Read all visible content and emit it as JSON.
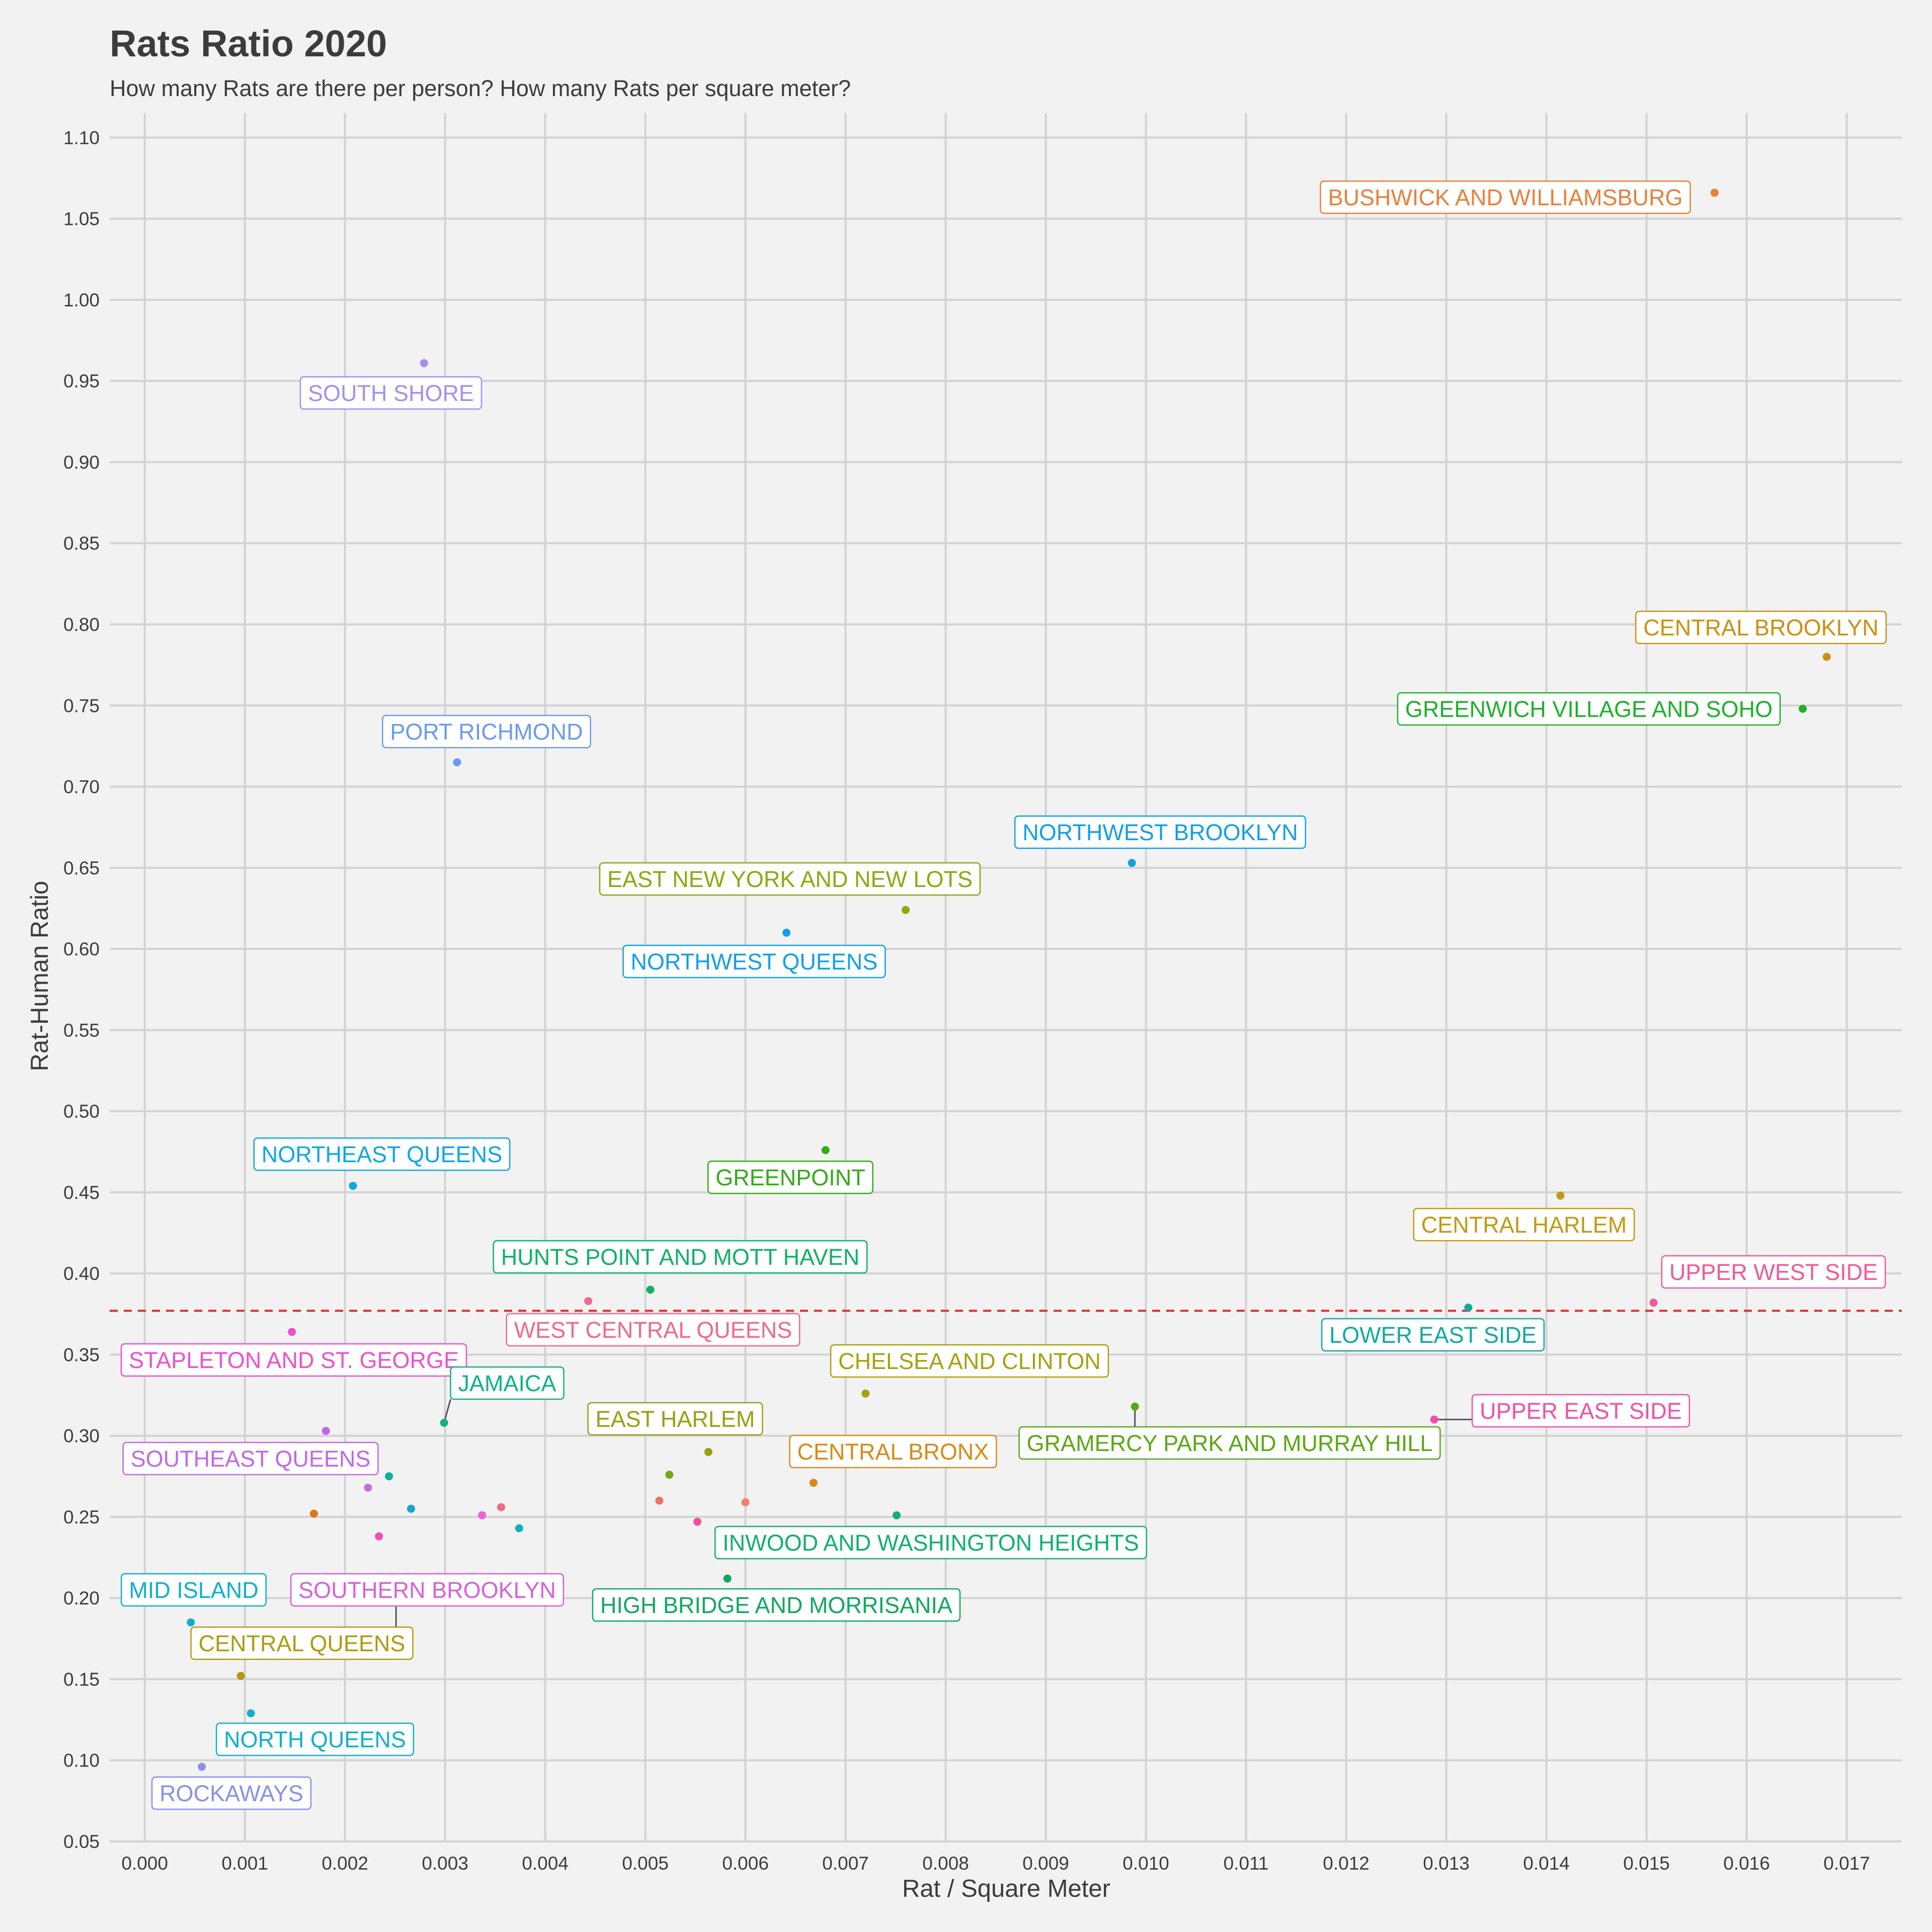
{
  "chart_data": {
    "type": "scatter",
    "title": "Rats Ratio 2020",
    "subtitle": "How many Rats are there per person? How many Rats per square meter?",
    "xlabel": "Rat / Square Meter",
    "ylabel": "Rat-Human Ratio",
    "xlim": [
      -0.00035,
      0.01755
    ],
    "ylim": [
      0.05,
      1.115
    ],
    "x_ticks": [
      0.0,
      0.001,
      0.002,
      0.003,
      0.004,
      0.005,
      0.006,
      0.007,
      0.008,
      0.009,
      0.01,
      0.011,
      0.012,
      0.013,
      0.014,
      0.015,
      0.016,
      0.017
    ],
    "x_tick_labels": [
      "0.000",
      "0.001",
      "0.002",
      "0.003",
      "0.004",
      "0.005",
      "0.006",
      "0.007",
      "0.008",
      "0.009",
      "0.010",
      "0.011",
      "0.012",
      "0.013",
      "0.014",
      "0.015",
      "0.016",
      "0.017"
    ],
    "y_ticks": [
      0.05,
      0.1,
      0.15,
      0.2,
      0.25,
      0.3,
      0.35,
      0.4,
      0.45,
      0.5,
      0.55,
      0.6,
      0.65,
      0.7,
      0.75,
      0.8,
      0.85,
      0.9,
      0.95,
      1.0,
      1.05,
      1.1
    ],
    "y_tick_labels": [
      "0.05",
      "0.10",
      "0.15",
      "0.20",
      "0.25",
      "0.30",
      "0.35",
      "0.40",
      "0.45",
      "0.50",
      "0.55",
      "0.60",
      "0.65",
      "0.70",
      "0.75",
      "0.80",
      "0.85",
      "0.90",
      "0.95",
      "1.00",
      "1.05",
      "1.10"
    ],
    "grid": true,
    "legend": "none",
    "reference_line": {
      "y": 0.377,
      "style": "dashed",
      "color": "#e8262b"
    },
    "points": [
      {
        "x": 0.01568,
        "y": 1.066,
        "color": "#e8803a",
        "label": "BUSHWICK AND WILLIAMSBURG"
      },
      {
        "x": 0.00279,
        "y": 0.961,
        "color": "#a390f0",
        "label": "SOUTH SHORE"
      },
      {
        "x": 0.0168,
        "y": 0.78,
        "color": "#cc9010",
        "label": "CENTRAL BROOKLYN"
      },
      {
        "x": 0.01656,
        "y": 0.748,
        "color": "#1db02c",
        "label": "GREENWICH VILLAGE AND SOHO"
      },
      {
        "x": 0.00312,
        "y": 0.715,
        "color": "#6b9af0",
        "label": "PORT RICHMOND"
      },
      {
        "x": 0.00986,
        "y": 0.653,
        "color": "#139fe8",
        "label": "NORTHWEST BROOKLYN"
      },
      {
        "x": 0.0076,
        "y": 0.624,
        "color": "#8aaa10",
        "label": "EAST NEW YORK AND NEW LOTS"
      },
      {
        "x": 0.00641,
        "y": 0.61,
        "color": "#139fe8",
        "label": "NORTHWEST QUEENS"
      },
      {
        "x": 0.0068,
        "y": 0.476,
        "color": "#33ab18",
        "label": "GREENPOINT"
      },
      {
        "x": 0.00208,
        "y": 0.454,
        "color": "#10a6e6",
        "label": "NORTHEAST QUEENS"
      },
      {
        "x": 0.01414,
        "y": 0.448,
        "color": "#c09a12",
        "label": "CENTRAL HARLEM"
      },
      {
        "x": 0.00505,
        "y": 0.39,
        "color": "#10b068",
        "label": "HUNTS POINT AND MOTT HAVEN"
      },
      {
        "x": 0.00443,
        "y": 0.383,
        "color": "#f06a8a",
        "label": "WEST CENTRAL QUEENS"
      },
      {
        "x": 0.01507,
        "y": 0.382,
        "color": "#f05a98",
        "label": "UPPER WEST SIDE"
      },
      {
        "x": 0.01322,
        "y": 0.379,
        "color": "#10aaa0",
        "label": "LOWER EAST SIDE"
      },
      {
        "x": 0.00147,
        "y": 0.364,
        "color": "#f050c8",
        "label": "STAPLETON AND ST. GEORGE"
      },
      {
        "x": 0.0072,
        "y": 0.326,
        "color": "#a8a010",
        "label": "CHELSEA AND CLINTON"
      },
      {
        "x": 0.00989,
        "y": 0.318,
        "color": "#5aa812",
        "label": "GRAMERCY PARK AND MURRAY HILL"
      },
      {
        "x": 0.01288,
        "y": 0.31,
        "color": "#f050a8",
        "label": "UPPER EAST SIDE"
      },
      {
        "x": 0.00299,
        "y": 0.308,
        "color": "#10b08a",
        "label": "JAMAICA"
      },
      {
        "x": 0.00181,
        "y": 0.303,
        "color": "#c068e8",
        "label": "SOUTHEAST QUEENS"
      },
      {
        "x": 0.00563,
        "y": 0.29,
        "color": "#98a010",
        "label": "EAST HARLEM"
      },
      {
        "x": 0.00668,
        "y": 0.271,
        "color": "#d88a18",
        "label": "CENTRAL BRONX"
      },
      {
        "x": 0.00524,
        "y": 0.276,
        "color": "#70a818",
        "label": ""
      },
      {
        "x": 0.00244,
        "y": 0.275,
        "color": "#10b0a0",
        "label": ""
      },
      {
        "x": 0.00223,
        "y": 0.268,
        "color": "#c070e0",
        "label": ""
      },
      {
        "x": 0.00514,
        "y": 0.26,
        "color": "#f07060",
        "label": ""
      },
      {
        "x": 0.006,
        "y": 0.259,
        "color": "#f08070",
        "label": ""
      },
      {
        "x": 0.00356,
        "y": 0.256,
        "color": "#f06a80",
        "label": ""
      },
      {
        "x": 0.00266,
        "y": 0.255,
        "color": "#10a6d0",
        "label": ""
      },
      {
        "x": 0.00169,
        "y": 0.252,
        "color": "#d87a18",
        "label": ""
      },
      {
        "x": 0.00751,
        "y": 0.251,
        "color": "#10b070",
        "label": "INWOOD AND WASHINGTON HEIGHTS"
      },
      {
        "x": 0.00337,
        "y": 0.251,
        "color": "#f060d0",
        "label": ""
      },
      {
        "x": 0.00552,
        "y": 0.247,
        "color": "#f050a0",
        "label": ""
      },
      {
        "x": 0.00374,
        "y": 0.243,
        "color": "#10b0c0",
        "label": ""
      },
      {
        "x": 0.00234,
        "y": 0.238,
        "color": "#f050a8",
        "label": ""
      },
      {
        "x": 0.00582,
        "y": 0.212,
        "color": "#10a860",
        "label": "HIGH BRIDGE AND MORRISANIA"
      },
      {
        "x": 0.00046,
        "y": 0.185,
        "color": "#10b0c8",
        "label": "MID ISLAND"
      },
      {
        "x": 0.00251,
        "y": 0.165,
        "color": "#d860d8",
        "label": "SOUTHERN BROOKLYN"
      },
      {
        "x": 0.00096,
        "y": 0.152,
        "color": "#b09a10",
        "label": "CENTRAL QUEENS"
      },
      {
        "x": 0.00106,
        "y": 0.129,
        "color": "#10b0c8",
        "label": "NORTH QUEENS"
      },
      {
        "x": 0.00057,
        "y": 0.096,
        "color": "#8a90e8",
        "label": "ROCKAWAYS"
      }
    ]
  }
}
